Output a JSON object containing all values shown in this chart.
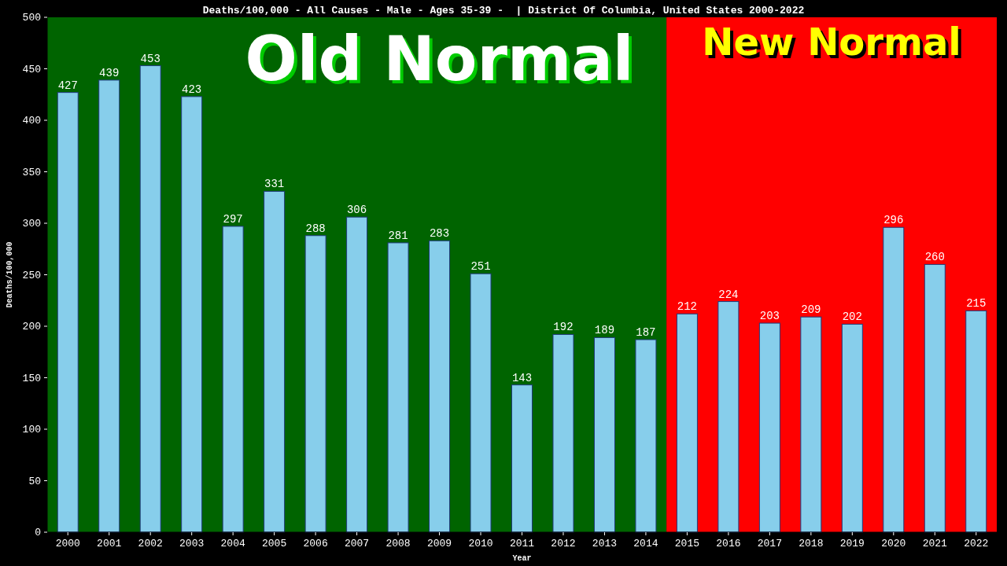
{
  "chart_data": {
    "type": "bar",
    "title": "Deaths/100,000 - All Causes - Male - Ages 35-39 -  | District Of Columbia, United States 2000-2022",
    "xlabel": "Year",
    "ylabel": "Deaths/100,000",
    "categories": [
      "2000",
      "2001",
      "2002",
      "2003",
      "2004",
      "2005",
      "2006",
      "2007",
      "2008",
      "2009",
      "2010",
      "2011",
      "2012",
      "2013",
      "2014",
      "2015",
      "2016",
      "2017",
      "2018",
      "2019",
      "2020",
      "2021",
      "2022"
    ],
    "values": [
      427,
      439,
      453,
      423,
      297,
      331,
      288,
      306,
      281,
      283,
      251,
      143,
      192,
      189,
      187,
      212,
      224,
      203,
      209,
      202,
      296,
      260,
      215
    ],
    "color": "#87ceeb",
    "ylim": [
      0,
      500
    ],
    "yticks": [
      0,
      50,
      100,
      150,
      200,
      250,
      300,
      350,
      400,
      450,
      500
    ],
    "data_labels": true,
    "bands": [
      {
        "axis": "x",
        "from": "2000",
        "to": "2014",
        "label": "Old Normal",
        "color": "#006400"
      },
      {
        "axis": "x",
        "from": "2015",
        "to": "2022",
        "label": "New Normal",
        "color": "#ff0000"
      }
    ]
  }
}
